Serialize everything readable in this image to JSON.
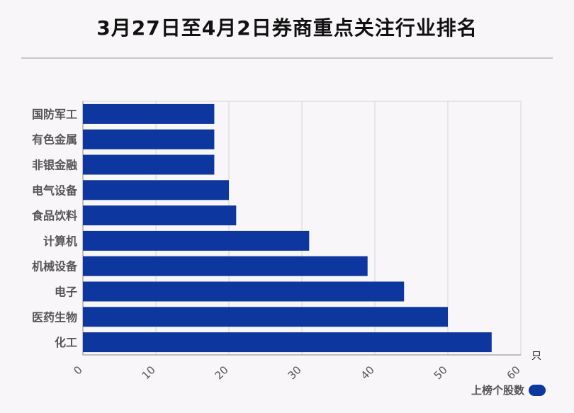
{
  "title": "3月27日至4月2日券商重点关注行业排名",
  "unit": "只",
  "legend": {
    "label": "上榜个股数",
    "color": "#0d369e"
  },
  "chart_data": {
    "type": "bar",
    "orientation": "horizontal",
    "categories": [
      "国防军工",
      "有色金属",
      "非银金融",
      "电气设备",
      "食品饮料",
      "计算机",
      "机械设备",
      "电子",
      "医药生物",
      "化工"
    ],
    "series": [
      {
        "name": "上榜个股数",
        "values": [
          18,
          18,
          18,
          20,
          21,
          31,
          39,
          44,
          50,
          56
        ]
      }
    ],
    "xlim": [
      0,
      60
    ],
    "xticks": [
      0,
      10,
      20,
      30,
      40,
      50,
      60
    ],
    "grid": true,
    "legend_position": "bottom-right"
  }
}
